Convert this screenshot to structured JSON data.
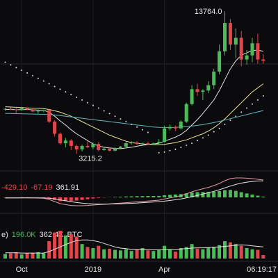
{
  "chart_data": [
    {
      "type": "candlestick",
      "categories": [
        null,
        null,
        null,
        "Oct",
        null,
        null,
        null,
        null,
        null,
        null,
        null,
        null,
        null,
        null,
        null,
        null,
        "2019",
        null,
        null,
        null,
        null,
        null,
        null,
        null,
        null,
        null,
        null,
        null,
        null,
        "Apr",
        null,
        null,
        null,
        null,
        null,
        null,
        null,
        null,
        null,
        null,
        null,
        null,
        null,
        null,
        null,
        null,
        null,
        null
      ],
      "open": [
        6500,
        6550,
        6500,
        6450,
        6600,
        6500,
        6350,
        6400,
        6450,
        5600,
        4700,
        4000,
        4200,
        3800,
        3550,
        3800,
        3700,
        3950,
        3500,
        3600,
        3450,
        3650,
        3750,
        4000,
        4050,
        3950,
        4000,
        3900,
        4000,
        4100,
        5100,
        5200,
        5100,
        5600,
        6900,
        8000,
        7800,
        7900,
        8300,
        9300,
        10800,
        12900,
        11300,
        11800,
        10200,
        10500,
        11400,
        10200
      ],
      "high": [
        6600,
        6650,
        6600,
        6700,
        6650,
        6600,
        6500,
        6500,
        6500,
        5700,
        4800,
        4400,
        4300,
        3900,
        3900,
        4150,
        4050,
        4100,
        3750,
        3700,
        3700,
        3800,
        4100,
        4150,
        4150,
        4050,
        4100,
        4050,
        4300,
        5300,
        5400,
        5300,
        5700,
        7000,
        8300,
        8400,
        8000,
        8600,
        9500,
        11300,
        13764,
        13200,
        12500,
        12300,
        10900,
        11800,
        12100,
        10600
      ],
      "low": [
        6400,
        6450,
        6250,
        6400,
        6450,
        6300,
        6200,
        6300,
        5500,
        4500,
        3900,
        3700,
        3500,
        3215.2,
        3400,
        3650,
        3550,
        3400,
        3450,
        3400,
        3400,
        3550,
        3700,
        3900,
        3850,
        3800,
        3850,
        3850,
        3950,
        4050,
        4950,
        4900,
        5000,
        5500,
        6800,
        7500,
        7200,
        7700,
        8000,
        9100,
        10500,
        10900,
        10300,
        9700,
        9800,
        10000,
        9900,
        9900
      ],
      "close": [
        6550,
        6500,
        6450,
        6600,
        6500,
        6350,
        6400,
        6450,
        5600,
        4700,
        4000,
        4200,
        3800,
        3550,
        3800,
        3700,
        3950,
        3500,
        3600,
        3450,
        3650,
        3750,
        4000,
        4050,
        3950,
        4000,
        3900,
        4000,
        4100,
        5100,
        5200,
        5100,
        5600,
        6900,
        8000,
        7800,
        7900,
        8300,
        9300,
        10800,
        12900,
        11300,
        11800,
        10200,
        10500,
        11400,
        10200,
        10100
      ],
      "up_color": "#4cbb5a",
      "down_color": "#e0474c",
      "ylim": [
        2000,
        14600
      ],
      "max_label": "13764.0",
      "min_label": "3215.2",
      "time_label": "06:19:17",
      "series": [
        {
          "type": "line",
          "color": "#e6e6e6",
          "values": [
            6500,
            6500,
            6480,
            6490,
            6500,
            6480,
            6450,
            6440,
            6300,
            6000,
            5650,
            5350,
            5000,
            4700,
            4450,
            4200,
            3950,
            3800,
            3700,
            3650,
            3620,
            3600,
            3650,
            3700,
            3780,
            3850,
            3900,
            3950,
            4000,
            4150,
            4300,
            4450,
            4650,
            4950,
            5350,
            5750,
            6200,
            6700,
            7200,
            7900,
            8700,
            9500,
            10100,
            10500,
            10700,
            10850,
            10900,
            10800
          ]
        },
        {
          "type": "line",
          "color": "#efe59a",
          "values": [
            6700,
            6680,
            6660,
            6640,
            6620,
            6600,
            6580,
            6560,
            6500,
            6400,
            6300,
            6150,
            6000,
            5800,
            5600,
            5400,
            5200,
            5000,
            4800,
            4600,
            4450,
            4300,
            4150,
            4050,
            4000,
            3950,
            3920,
            3900,
            3900,
            3920,
            3980,
            4050,
            4150,
            4250,
            4400,
            4550,
            4700,
            4900,
            5150,
            5450,
            5800,
            6200,
            6600,
            7000,
            7400,
            7800,
            8100,
            8400
          ]
        },
        {
          "type": "line",
          "color": "#5fb7c4",
          "values": [
            6200,
            6200,
            6190,
            6180,
            6170,
            6160,
            6150,
            6140,
            6120,
            6090,
            6050,
            6000,
            5950,
            5900,
            5850,
            5800,
            5750,
            5700,
            5650,
            5600,
            5550,
            5500,
            5450,
            5400,
            5350,
            5300,
            5250,
            5200,
            5180,
            5170,
            5170,
            5180,
            5200,
            5230,
            5270,
            5320,
            5380,
            5450,
            5530,
            5620,
            5720,
            5820,
            5920,
            6020,
            6120,
            6220,
            6320,
            6420
          ]
        },
        {
          "type": "dots",
          "color": "#dddddd",
          "values": [
            10000,
            9800,
            9600,
            9400,
            9200,
            9000,
            8800,
            8600,
            8400,
            8200,
            8000,
            7800,
            7600,
            7400,
            7200,
            7000,
            6800,
            6600,
            6400,
            6200,
            6000,
            5800,
            5600,
            5400,
            5200,
            5000,
            4800,
            null,
            3300,
            3350,
            3450,
            3550,
            3700,
            3850,
            4000,
            4200,
            4400,
            4600,
            4850,
            5100,
            5400,
            5700,
            6000,
            6300,
            6600,
            6900,
            7200,
            7500
          ]
        }
      ]
    },
    {
      "type": "macd",
      "ylim": [
        -800,
        1600
      ],
      "readouts": [
        {
          "text": "-429.10",
          "color": "#e0474c"
        },
        {
          "text": "-67.19",
          "color": "#e0474c"
        },
        {
          "text": "361.91",
          "color": "#e6e6e6"
        }
      ],
      "histogram": [
        -20,
        -5,
        -2,
        6,
        4,
        -5,
        -12,
        -18,
        -86,
        -189,
        -271,
        -273,
        -266,
        -229,
        -183,
        -131,
        -81,
        -41,
        -17,
        10,
        32,
        50,
        64,
        75,
        84,
        91,
        97,
        102,
        106,
        149,
        183,
        210,
        232,
        290,
        352,
        378,
        382,
        386,
        413,
        450,
        520,
        536,
        469,
        375,
        284,
        203,
        122,
        58
      ],
      "up_color": "#4cbb5a",
      "down_color": "#e0474c",
      "series": [
        {
          "type": "line",
          "color": "#e79aa8",
          "values": [
            -50,
            -40,
            -40,
            -30,
            -30,
            -40,
            -50,
            -60,
            -150,
            -300,
            -450,
            -520,
            -580,
            -600,
            -600,
            -580,
            -550,
            -520,
            -500,
            -470,
            -440,
            -410,
            -380,
            -350,
            -320,
            -290,
            -260,
            -230,
            -200,
            -120,
            -40,
            40,
            120,
            250,
            400,
            520,
            620,
            720,
            850,
            1000,
            1200,
            1350,
            1400,
            1400,
            1380,
            1350,
            1300,
            1250
          ]
        },
        {
          "type": "line",
          "color": "#e6e6e6",
          "values": [
            -30,
            -35,
            -38,
            -36,
            -34,
            -35,
            -38,
            -42,
            -64,
            -111,
            -179,
            -247,
            -314,
            -371,
            -417,
            -449,
            -469,
            -479,
            -483,
            -480,
            -472,
            -460,
            -444,
            -425,
            -404,
            -381,
            -357,
            -332,
            -306,
            -269,
            -223,
            -170,
            -112,
            -40,
            48,
            142,
            238,
            334,
            437,
            550,
            680,
            814,
            931,
            1025,
            1096,
            1147,
            1178,
            1192
          ]
        }
      ]
    },
    {
      "type": "volume",
      "ylim": [
        0,
        600
      ],
      "readouts": [
        {
          "text": "e)",
          "color": "#e6e6e6"
        },
        {
          "text": "196.0K",
          "color": "#4cbb5a"
        },
        {
          "text": "362.4K",
          "color": "#e6e6e6"
        },
        {
          "text": "BTC",
          "color": "#e6e6e6"
        }
      ],
      "values": [
        80,
        90,
        110,
        70,
        90,
        100,
        110,
        90,
        300,
        450,
        480,
        400,
        420,
        380,
        250,
        200,
        180,
        220,
        160,
        170,
        150,
        140,
        160,
        130,
        150,
        180,
        140,
        130,
        150,
        220,
        150,
        120,
        180,
        200,
        250,
        170,
        160,
        190,
        200,
        230,
        300,
        280,
        250,
        220,
        180,
        160,
        150,
        60
      ],
      "series": [
        {
          "type": "line",
          "color": "#e6e6e6",
          "values": [
            100,
            100,
            100,
            95,
            95,
            95,
            95,
            95,
            120,
            160,
            200,
            240,
            280,
            310,
            320,
            320,
            310,
            290,
            260,
            230,
            200,
            180,
            170,
            160,
            160,
            155,
            150,
            150,
            150,
            155,
            160,
            160,
            165,
            170,
            180,
            185,
            185,
            190,
            195,
            200,
            210,
            220,
            230,
            235,
            230,
            220,
            210,
            200
          ]
        }
      ]
    }
  ]
}
